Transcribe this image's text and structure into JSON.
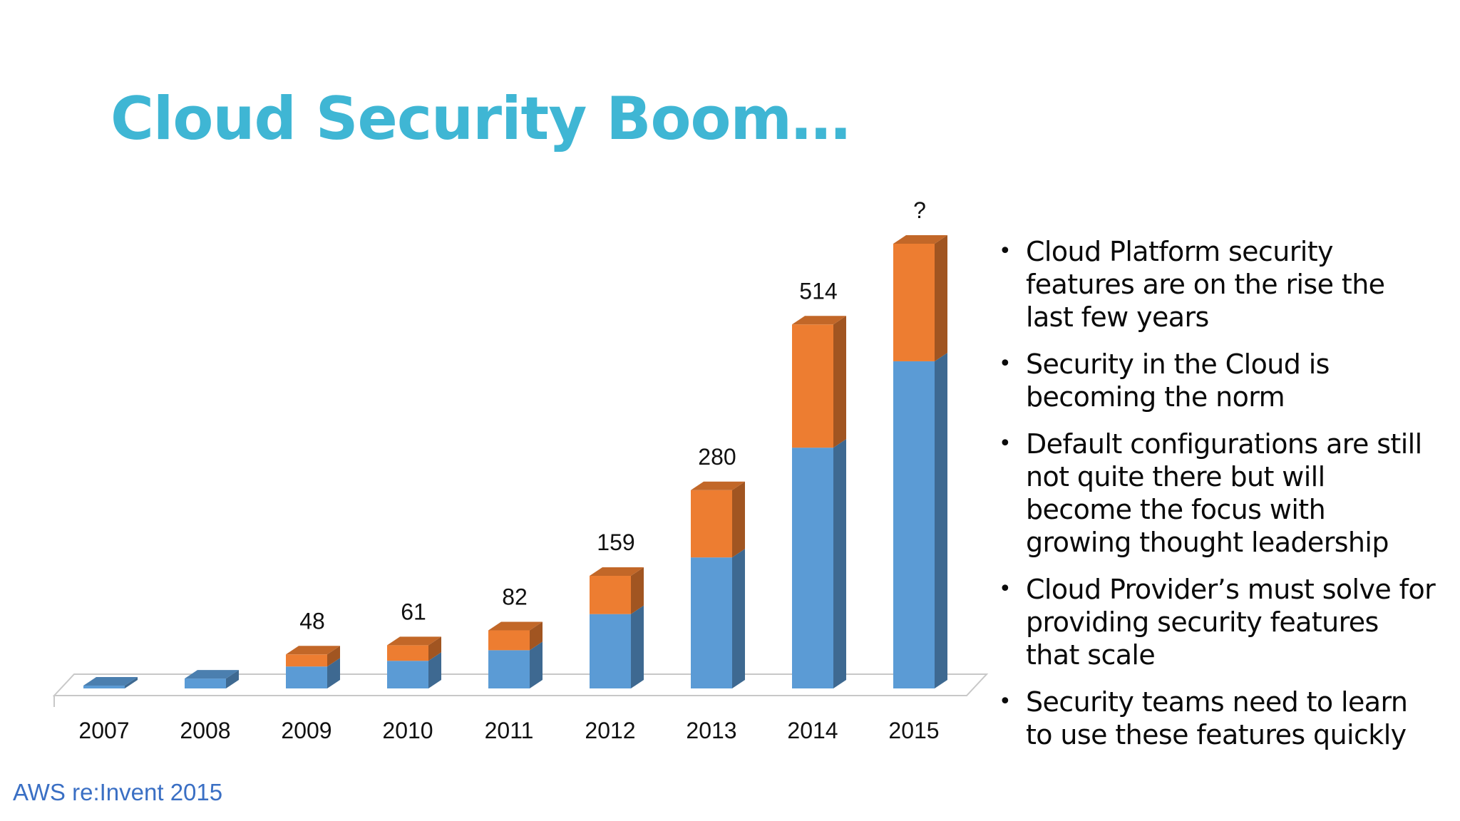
{
  "slide": {
    "title": "Cloud Security Boom…",
    "footer": "AWS re:Invent 2015",
    "bullets": [
      "Cloud Platform security features are on the rise the last few years",
      "Security in the Cloud is becoming the norm",
      "Default configurations are still not quite there but will become the focus with growing thought leadership",
      "Cloud Provider’s must solve for providing security features that scale",
      "Security teams need to learn to use these features quickly"
    ]
  },
  "chart_data": {
    "type": "bar",
    "stacked": true,
    "style": "3d-column",
    "categories": [
      "2007",
      "2008",
      "2009",
      "2010",
      "2011",
      "2012",
      "2013",
      "2014",
      "2015"
    ],
    "series": [
      {
        "color": "#5b9bd5",
        "values": [
          4,
          14,
          31,
          39,
          54,
          105,
          185,
          340,
          462
        ]
      },
      {
        "color": "#ed7d31",
        "values": [
          0,
          0,
          17,
          22,
          28,
          54,
          95,
          174,
          166
        ]
      }
    ],
    "data_labels": [
      "",
      "",
      "48",
      "61",
      "82",
      "159",
      "280",
      "514",
      "?"
    ],
    "ylim": [
      0,
      628
    ],
    "grid": false,
    "legend": "none",
    "xlabel": "",
    "ylabel": ""
  }
}
